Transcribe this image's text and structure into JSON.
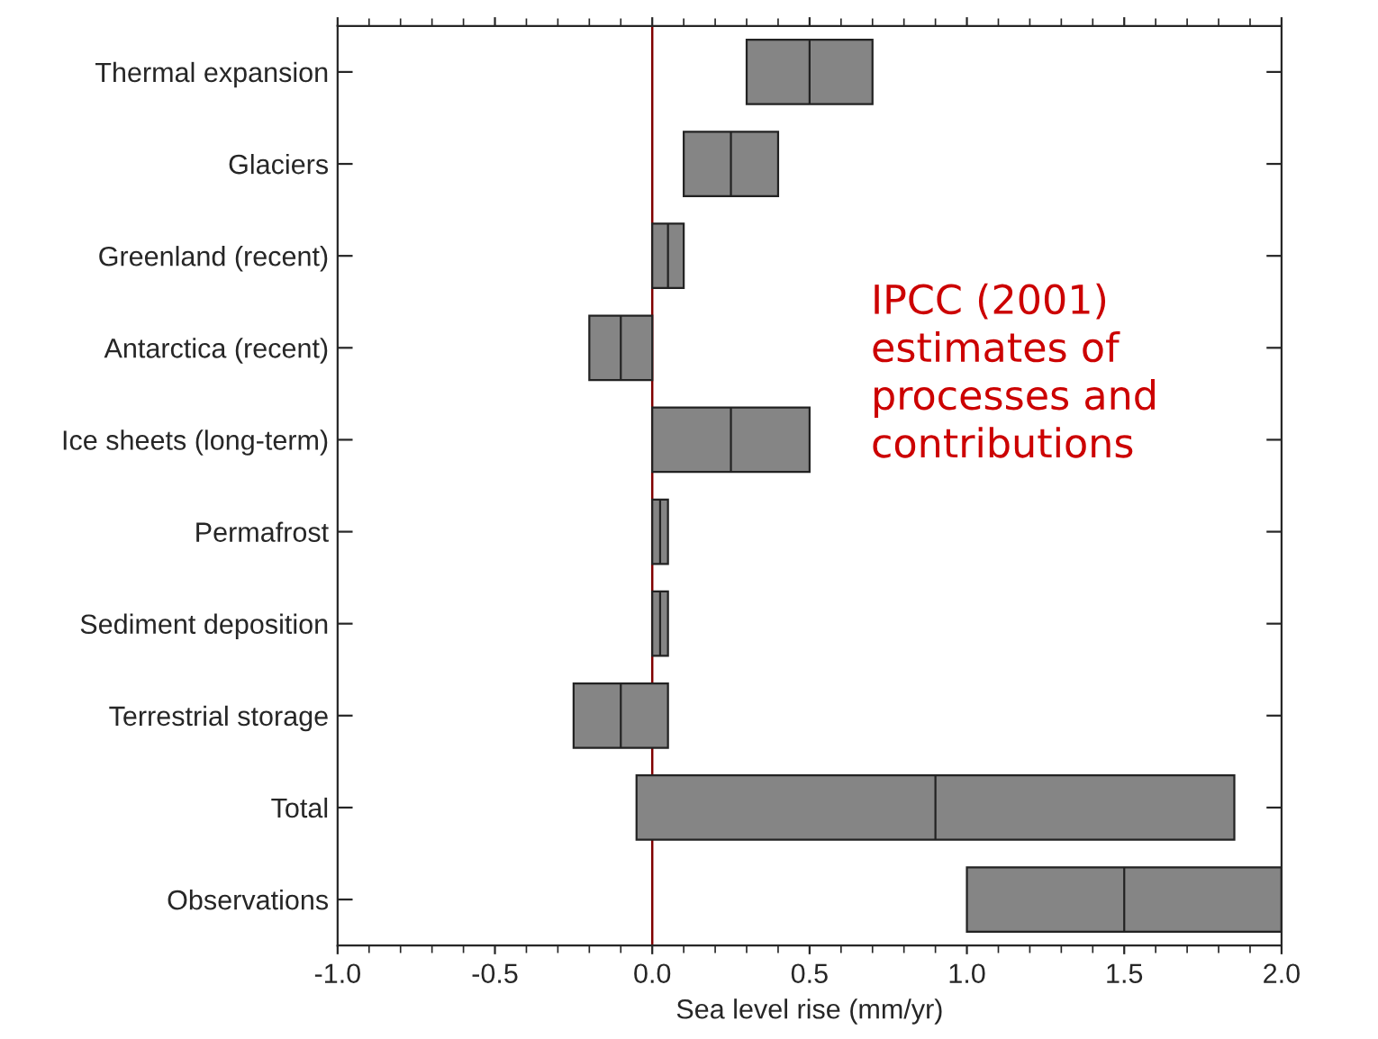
{
  "chart_data": {
    "type": "box",
    "orientation": "horizontal",
    "xlabel": "Sea level rise (mm/yr)",
    "categories": [
      "Thermal expansion",
      "Glaciers",
      "Greenland (recent)",
      "Antarctica (recent)",
      "Ice sheets (long-term)",
      "Permafrost",
      "Sediment deposition",
      "Terrestrial storage",
      "Total",
      "Observations"
    ],
    "color": "#858585",
    "boxes": [
      {
        "low": 0.3,
        "q1": 0.3,
        "median": 0.5,
        "q3": 0.7,
        "high": 0.7
      },
      {
        "low": 0.1,
        "q1": 0.1,
        "median": 0.25,
        "q3": 0.4,
        "high": 0.4
      },
      {
        "low": 0.0,
        "q1": 0.0,
        "median": 0.05,
        "q3": 0.1,
        "high": 0.1
      },
      {
        "low": -0.2,
        "q1": -0.2,
        "median": -0.1,
        "q3": 0.0,
        "high": 0.0
      },
      {
        "low": 0.0,
        "q1": 0.0,
        "median": 0.25,
        "q3": 0.5,
        "high": 0.5
      },
      {
        "low": 0.0,
        "q1": 0.0,
        "median": 0.025,
        "q3": 0.05,
        "high": 0.05
      },
      {
        "low": 0.0,
        "q1": 0.0,
        "median": 0.025,
        "q3": 0.05,
        "high": 0.05
      },
      {
        "low": -0.25,
        "q1": -0.25,
        "median": -0.1,
        "q3": 0.05,
        "high": 0.05
      },
      {
        "low": -0.05,
        "q1": -0.05,
        "median": 0.9,
        "q3": 1.85,
        "high": 1.85
      },
      {
        "low": 1.0,
        "q1": 1.0,
        "median": 1.5,
        "q3": 2.0,
        "high": 2.0
      }
    ],
    "xlim": [
      -1.0,
      2.0
    ],
    "xticks": [
      {
        "value": -1.0,
        "label": "-1.0"
      },
      {
        "value": -0.5,
        "label": "-0.5"
      },
      {
        "value": 0.0,
        "label": "0.0"
      },
      {
        "value": 0.5,
        "label": "0.5"
      },
      {
        "value": 1.0,
        "label": "1.0"
      },
      {
        "value": 1.5,
        "label": "1.5"
      },
      {
        "value": 2.0,
        "label": "2.0"
      }
    ],
    "ref_lines": [
      {
        "axis": "x",
        "value": 0.0,
        "label": null,
        "color": "#800000"
      }
    ],
    "annotations": [
      "IPCC (2001)\nestimates of\nprocesses and\ncontributions"
    ],
    "grid": false,
    "legend": false
  }
}
